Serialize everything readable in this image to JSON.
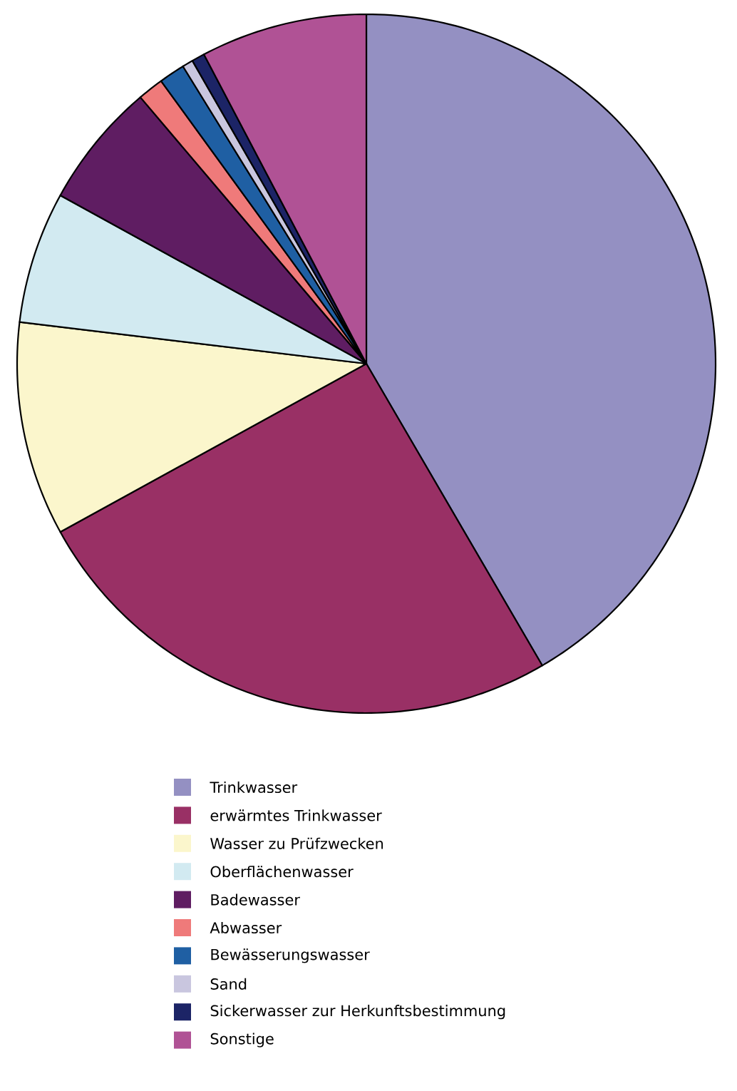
{
  "chart_data": {
    "type": "pie",
    "categories": [
      "Trinkwasser",
      "erwärmtes Trinkwasser",
      "Wasser zu Prüfzwecken",
      "Oberflächenwasser",
      "Badewasser",
      "Abwasser",
      "Bewässerungswasser",
      "Sand",
      "Sickerwasser zur Herkunftsbestimmung",
      "Sonstige"
    ],
    "values": [
      41.6,
      25.4,
      9.9,
      6.1,
      5.8,
      1.2,
      1.2,
      0.5,
      0.6,
      7.7
    ],
    "colors": [
      "#9490c2",
      "#993065",
      "#fbf6cc",
      "#d2eaf1",
      "#5f1d62",
      "#ef7a7a",
      "#1f5fa3",
      "#c9c6df",
      "#1c2466",
      "#b05295"
    ],
    "legend": "bottom"
  }
}
